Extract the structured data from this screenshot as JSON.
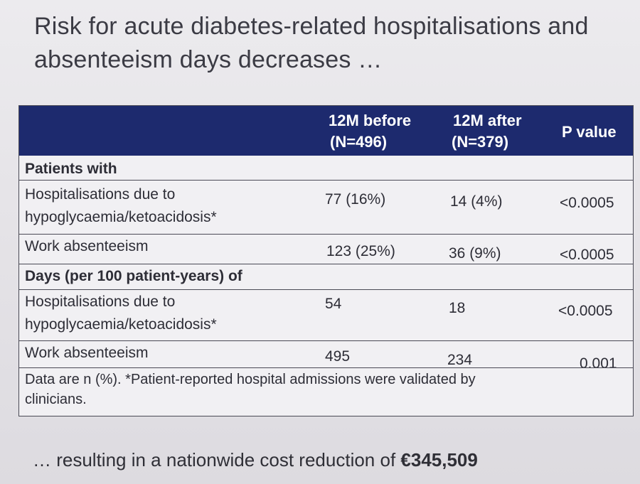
{
  "title_line1": "Risk for acute diabetes-related hospitalisations and",
  "title_line2": "absenteeism days decreases …",
  "table": {
    "headers": {
      "before_line1": "12M before",
      "before_line2": "(N=496)",
      "after_line1": "12M after",
      "after_line2": "(N=379)",
      "p": "P value"
    },
    "section1": "Patients with",
    "section2": "Days (per 100 patient-years) of",
    "rows": [
      {
        "label1": "Hospitalisations due to",
        "label2": "hypoglycaemia/ketoacidosis*",
        "before": "77 (16%)",
        "after": "14 (4%)",
        "p": "<0.0005"
      },
      {
        "label1": "Work absenteeism",
        "label2": "",
        "before": "123 (25%)",
        "after": "36 (9%)",
        "p": "<0.0005"
      },
      {
        "label1": "Hospitalisations due to",
        "label2": "hypoglycaemia/ketoacidosis*",
        "before": "54",
        "after": "18",
        "p": "<0.0005"
      },
      {
        "label1": "Work absenteeism",
        "label2": "",
        "before": "495",
        "after": "234",
        "p": "0.001"
      }
    ],
    "note_line1": "Data are n (%). *Patient-reported hospital admissions were validated by",
    "note_line2": "clinicians."
  },
  "bottom_prefix": "… resulting in a nationwide cost reduction of ",
  "bottom_amount": "€345,509",
  "colors": {
    "header_bg": "#1d2a6e",
    "background": "#e6e4e8"
  }
}
